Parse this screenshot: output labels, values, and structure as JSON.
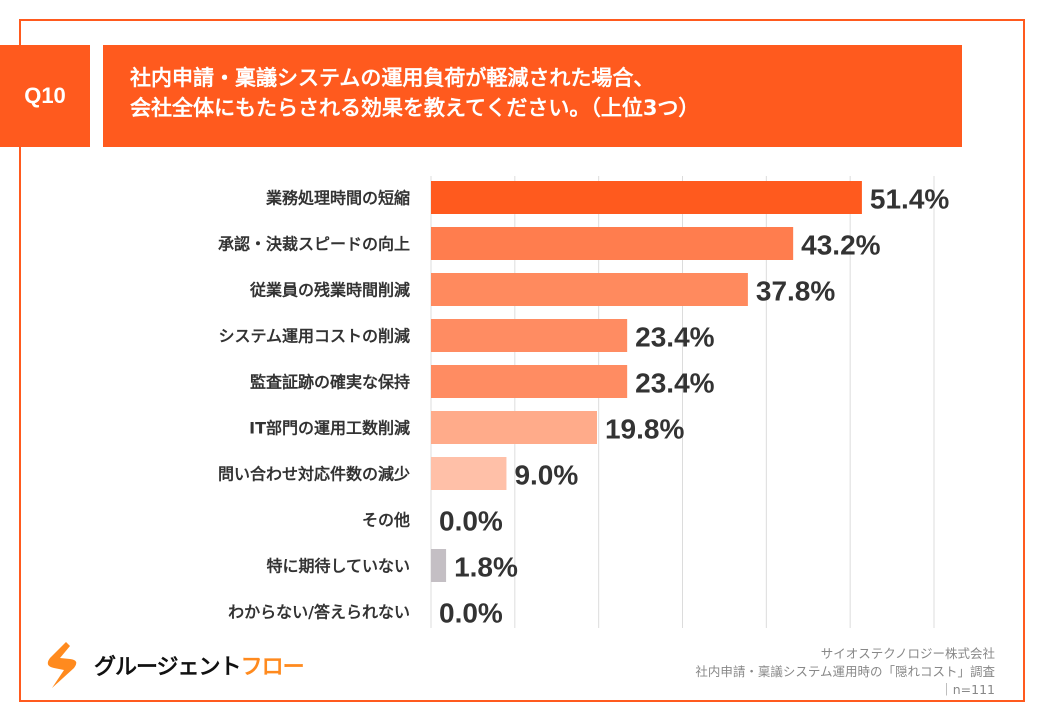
{
  "header": {
    "question": "Q10",
    "title_line1": "社内申請・稟議システムの運用負荷が軽減された場合、",
    "title_line2": "会社全体にもたらされる効果を教えてください。（上位3つ）"
  },
  "chart_data": {
    "type": "bar",
    "orientation": "horizontal",
    "categories": [
      "業務処理時間の短縮",
      "承認・決裁スピードの向上",
      "従業員の残業時間削減",
      "システム運用コストの削減",
      "監査証跡の確実な保持",
      "IT部門の運用工数削減",
      "問い合わせ対応件数の減少",
      "その他",
      "特に期待していない",
      "わからない/答えられない"
    ],
    "values": [
      51.4,
      43.2,
      37.8,
      23.4,
      23.4,
      19.8,
      9.0,
      0.0,
      1.8,
      0.0
    ],
    "value_labels": [
      "51.4%",
      "43.2%",
      "37.8%",
      "23.4%",
      "23.4%",
      "19.8%",
      "9.0%",
      "0.0%",
      "1.8%",
      "0.0%"
    ],
    "colors": [
      "#FF5A1E",
      "#FF7D4E",
      "#FF8A5E",
      "#FF8C62",
      "#FF8C62",
      "#FFAB8A",
      "#FFC0A8",
      "#FFC0A8",
      "#C4BFC4",
      "#C4BFC4"
    ],
    "xlim": [
      0,
      60
    ],
    "grid": true,
    "unit": "%"
  },
  "footer": {
    "logo_main": "グルージェント",
    "logo_accent": "フロー",
    "company": "サイオステクノロジー株式会社",
    "survey": "社内申請・稟議システム運用時の「隠れコスト」調査",
    "n": "｜n=111"
  }
}
